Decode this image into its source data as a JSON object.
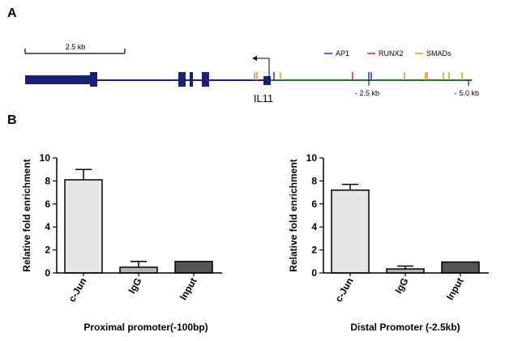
{
  "panels": {
    "a": "A",
    "b": "B"
  },
  "diagram": {
    "scale_bar_label": "2.5 kb",
    "gene_name": "IL11",
    "legend": [
      {
        "label": "AP1",
        "color": "#2233cc"
      },
      {
        "label": "RUNX2",
        "color": "#e02020"
      },
      {
        "label": "SMADs",
        "color": "#f0901e"
      }
    ],
    "ruler_labels": [
      "- 2.5 kb",
      "- 5.0 kb"
    ],
    "colors": {
      "gene_body": "#1a1f7a",
      "promoter_line": "#1e7a1e",
      "arrow": "#000000"
    }
  },
  "chart_data": [
    {
      "type": "bar",
      "title": "Proximal promoter(-100bp)",
      "xlabel": "",
      "ylabel": "Relative fold enrichment",
      "categories": [
        "c-Jun",
        "IgG",
        "Input"
      ],
      "values": [
        8.1,
        0.5,
        1.0
      ],
      "errors": [
        0.9,
        0.5,
        0
      ],
      "bar_colors": [
        "#e6e6e6",
        "#b4b4b4",
        "#555555"
      ],
      "ylim": [
        0,
        10
      ],
      "yticks": [
        0,
        2,
        4,
        6,
        8,
        10
      ],
      "grid": false,
      "legend": "none"
    },
    {
      "type": "bar",
      "title": "Distal Promoter (-2.5kb)",
      "xlabel": "",
      "ylabel": "Relative fold enrichment",
      "categories": [
        "c-Jun",
        "IgG",
        "Input"
      ],
      "values": [
        7.2,
        0.35,
        0.95
      ],
      "errors": [
        0.5,
        0.25,
        0
      ],
      "bar_colors": [
        "#e6e6e6",
        "#b4b4b4",
        "#555555"
      ],
      "ylim": [
        0,
        10
      ],
      "yticks": [
        0,
        2,
        4,
        6,
        8,
        10
      ],
      "grid": false,
      "legend": "none"
    }
  ]
}
